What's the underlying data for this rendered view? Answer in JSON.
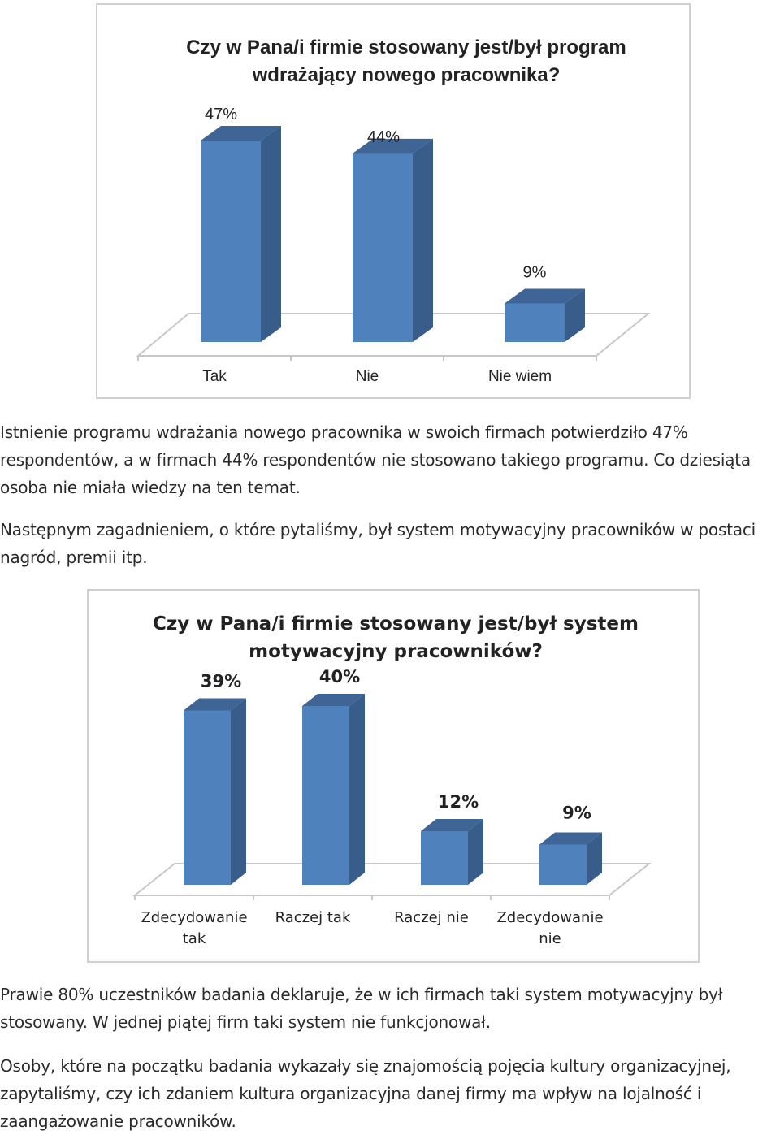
{
  "charts": [
    {
      "title_lines": [
        "Czy w Pana/i firmie stosowany jest/był program",
        "wdrażający nowego pracownika?"
      ],
      "colors": {
        "front": "#4f81bd",
        "side": "#385d8a",
        "top": "#3f6596"
      }
    },
    {
      "title_lines": [
        "Czy w Pana/i firmie stosowany jest/był system",
        "motywacyjny pracowników?"
      ],
      "colors": {
        "front": "#4f81bd",
        "side": "#385d8a",
        "top": "#3f6596"
      }
    }
  ],
  "chart_data": [
    {
      "type": "bar",
      "title": "Czy w Pana/i firmie stosowany jest/był program wdrażający nowego pracownika?",
      "categories": [
        "Tak",
        "Nie",
        "Nie wiem"
      ],
      "values": [
        47,
        44,
        9
      ],
      "data_labels": [
        "47%",
        "44%",
        "9%"
      ],
      "unit": "%",
      "grid": false,
      "legend": "none",
      "style": "3d-column"
    },
    {
      "type": "bar",
      "title": "Czy w Pana/i firmie stosowany jest/był system motywacyjny pracowników?",
      "categories": [
        [
          "Zdecydowanie",
          "tak"
        ],
        [
          "Raczej tak"
        ],
        [
          "Raczej nie"
        ],
        [
          "Zdecydowanie",
          "nie"
        ]
      ],
      "values": [
        39,
        40,
        12,
        9
      ],
      "data_labels": [
        "39%",
        "40%",
        "12%",
        "9%"
      ],
      "unit": "%",
      "grid": false,
      "legend": "none",
      "style": "3d-column"
    }
  ],
  "text": {
    "p1": "Istnienie programu wdrażania nowego pracownika w swoich firmach potwierdziło 47% respondentów, a w firmach 44% respondentów nie stosowano takiego programu. Co dziesiąta osoba nie miała wiedzy na ten temat.",
    "p2": "Następnym zagadnieniem, o które pytaliśmy, był system motywacyjny pracowników w postaci nagród, premii itp.",
    "p3": "Prawie 80% uczestników badania deklaruje, że w ich firmach taki system motywacyjny był stosowany. W jednej piątej firm taki system nie funkcjonował.",
    "p4": "Osoby, które na początku badania wykazały się znajomością pojęcia kultury organizacyjnej, zapytaliśmy, czy ich zdaniem kultura organizacyjna danej firmy ma wpływ na lojalność i zaangażowanie pracowników."
  }
}
